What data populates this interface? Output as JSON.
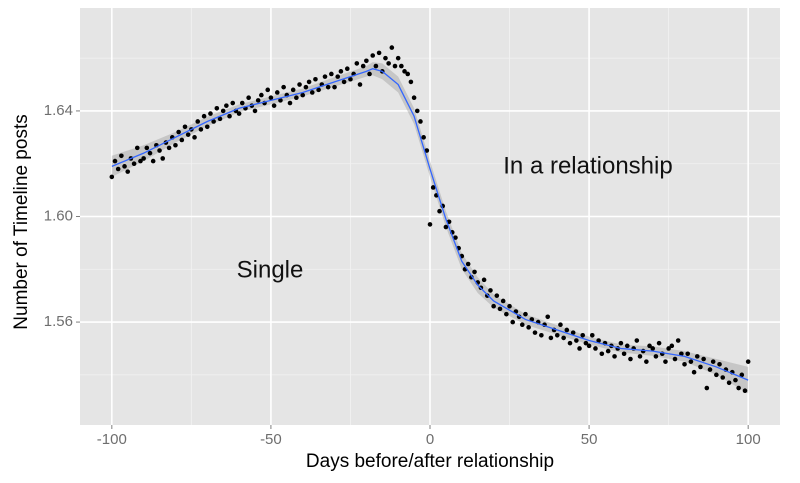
{
  "chart_data": {
    "type": "scatter",
    "xlabel": "Days before/after relationship",
    "ylabel": "Number of Timeline posts",
    "annotations": [
      "Single",
      "In a relationship"
    ],
    "xlim": [
      -110,
      110
    ],
    "ylim": [
      1.521,
      1.679
    ],
    "xticks": [
      -100,
      -50,
      0,
      50,
      100
    ],
    "yticks": [
      1.56,
      {
        "value": 1.6,
        "label": "1.60"
      },
      1.64
    ],
    "minor_xticks": [
      -75,
      -25,
      25,
      75
    ],
    "minor_yticks": [
      1.54,
      1.58,
      1.62,
      1.66
    ],
    "grid": true,
    "color": "#000000",
    "x": [
      -100,
      -99,
      -98,
      -97,
      -96,
      -95,
      -94,
      -93,
      -92,
      -91,
      -90,
      -89,
      -88,
      -87,
      -86,
      -85,
      -84,
      -83,
      -82,
      -81,
      -80,
      -79,
      -78,
      -77,
      -76,
      -75,
      -74,
      -73,
      -72,
      -71,
      -70,
      -69,
      -68,
      -67,
      -66,
      -65,
      -64,
      -63,
      -62,
      -61,
      -60,
      -59,
      -58,
      -57,
      -56,
      -55,
      -54,
      -53,
      -52,
      -51,
      -50,
      -49,
      -48,
      -47,
      -46,
      -45,
      -44,
      -43,
      -42,
      -41,
      -40,
      -39,
      -38,
      -37,
      -36,
      -35,
      -34,
      -33,
      -32,
      -31,
      -30,
      -29,
      -28,
      -27,
      -26,
      -25,
      -24,
      -23,
      -22,
      -21,
      -20,
      -19,
      -18,
      -17,
      -16,
      -15,
      -14,
      -13,
      -12,
      -11,
      -10,
      -9,
      -8,
      -7,
      -6,
      -5,
      -4,
      -3,
      -2,
      -1,
      0,
      1,
      2,
      3,
      4,
      5,
      6,
      7,
      8,
      9,
      10,
      11,
      12,
      13,
      14,
      15,
      16,
      17,
      18,
      19,
      20,
      21,
      22,
      23,
      24,
      25,
      26,
      27,
      28,
      29,
      30,
      31,
      32,
      33,
      34,
      35,
      36,
      37,
      38,
      39,
      40,
      41,
      42,
      43,
      44,
      45,
      46,
      47,
      48,
      49,
      50,
      51,
      52,
      53,
      54,
      55,
      56,
      57,
      58,
      59,
      60,
      61,
      62,
      63,
      64,
      65,
      66,
      67,
      68,
      69,
      70,
      71,
      72,
      73,
      74,
      75,
      76,
      77,
      78,
      79,
      80,
      81,
      82,
      83,
      84,
      85,
      86,
      87,
      88,
      89,
      90,
      91,
      92,
      93,
      94,
      95,
      96,
      97,
      98,
      99,
      100
    ],
    "values": [
      1.615,
      1.621,
      1.618,
      1.623,
      1.619,
      1.617,
      1.622,
      1.62,
      1.626,
      1.621,
      1.622,
      1.626,
      1.624,
      1.621,
      1.627,
      1.625,
      1.622,
      1.628,
      1.626,
      1.63,
      1.627,
      1.632,
      1.629,
      1.634,
      1.631,
      1.633,
      1.63,
      1.636,
      1.633,
      1.638,
      1.634,
      1.639,
      1.636,
      1.641,
      1.637,
      1.64,
      1.642,
      1.638,
      1.643,
      1.64,
      1.639,
      1.643,
      1.641,
      1.645,
      1.642,
      1.64,
      1.644,
      1.646,
      1.643,
      1.648,
      1.645,
      1.642,
      1.647,
      1.644,
      1.649,
      1.646,
      1.643,
      1.648,
      1.645,
      1.65,
      1.646,
      1.649,
      1.651,
      1.647,
      1.652,
      1.648,
      1.65,
      1.653,
      1.649,
      1.654,
      1.649,
      1.653,
      1.655,
      1.651,
      1.656,
      1.652,
      1.654,
      1.658,
      1.65,
      1.657,
      1.659,
      1.654,
      1.661,
      1.657,
      1.662,
      1.655,
      1.66,
      1.658,
      1.664,
      1.657,
      1.66,
      1.657,
      1.655,
      1.654,
      1.651,
      1.645,
      1.64,
      1.636,
      1.63,
      1.625,
      1.597,
      1.611,
      1.608,
      1.602,
      1.604,
      1.596,
      1.598,
      1.594,
      1.592,
      1.588,
      1.585,
      1.58,
      1.582,
      1.577,
      1.579,
      1.575,
      1.573,
      1.576,
      1.57,
      1.572,
      1.566,
      1.57,
      1.565,
      1.568,
      1.563,
      1.566,
      1.56,
      1.564,
      1.562,
      1.559,
      1.563,
      1.558,
      1.561,
      1.556,
      1.56,
      1.555,
      1.559,
      1.562,
      1.554,
      1.557,
      1.555,
      1.559,
      1.554,
      1.557,
      1.552,
      1.556,
      1.553,
      1.55,
      1.555,
      1.552,
      1.551,
      1.555,
      1.55,
      1.553,
      1.548,
      1.552,
      1.549,
      1.551,
      1.547,
      1.55,
      1.552,
      1.548,
      1.551,
      1.546,
      1.55,
      1.553,
      1.547,
      1.549,
      1.545,
      1.551,
      1.55,
      1.547,
      1.552,
      1.548,
      1.545,
      1.55,
      1.551,
      1.546,
      1.553,
      1.548,
      1.544,
      1.548,
      1.545,
      1.541,
      1.547,
      1.543,
      1.546,
      1.535,
      1.542,
      1.545,
      1.54,
      1.544,
      1.539,
      1.542,
      1.537,
      1.541,
      1.538,
      1.535,
      1.54,
      1.534,
      1.545
    ],
    "smooth": {
      "color": "#3366ff",
      "band_color": "#999999",
      "x": [
        -100,
        -90,
        -80,
        -70,
        -60,
        -50,
        -40,
        -30,
        -20,
        -18,
        -15,
        -10,
        -5,
        0,
        5,
        10,
        15,
        20,
        30,
        40,
        50,
        60,
        70,
        80,
        90,
        100
      ],
      "values": [
        1.619,
        1.624,
        1.63,
        1.636,
        1.641,
        1.644,
        1.647,
        1.651,
        1.655,
        1.656,
        1.655,
        1.65,
        1.638,
        1.618,
        1.599,
        1.583,
        1.574,
        1.568,
        1.561,
        1.557,
        1.553,
        1.55,
        1.549,
        1.547,
        1.543,
        1.538
      ],
      "lower": [
        1.615,
        1.621,
        1.628,
        1.6342,
        1.6395,
        1.6425,
        1.6455,
        1.6492,
        1.653,
        1.6535,
        1.652,
        1.647,
        1.635,
        1.615,
        1.596,
        1.58,
        1.571,
        1.5655,
        1.559,
        1.5552,
        1.5515,
        1.5485,
        1.5472,
        1.545,
        1.54,
        1.533
      ],
      "upper": [
        1.623,
        1.627,
        1.632,
        1.6378,
        1.6425,
        1.6455,
        1.6485,
        1.6528,
        1.657,
        1.6585,
        1.658,
        1.653,
        1.641,
        1.621,
        1.602,
        1.586,
        1.577,
        1.5705,
        1.563,
        1.5588,
        1.5545,
        1.5515,
        1.5508,
        1.549,
        1.546,
        1.543
      ]
    }
  }
}
